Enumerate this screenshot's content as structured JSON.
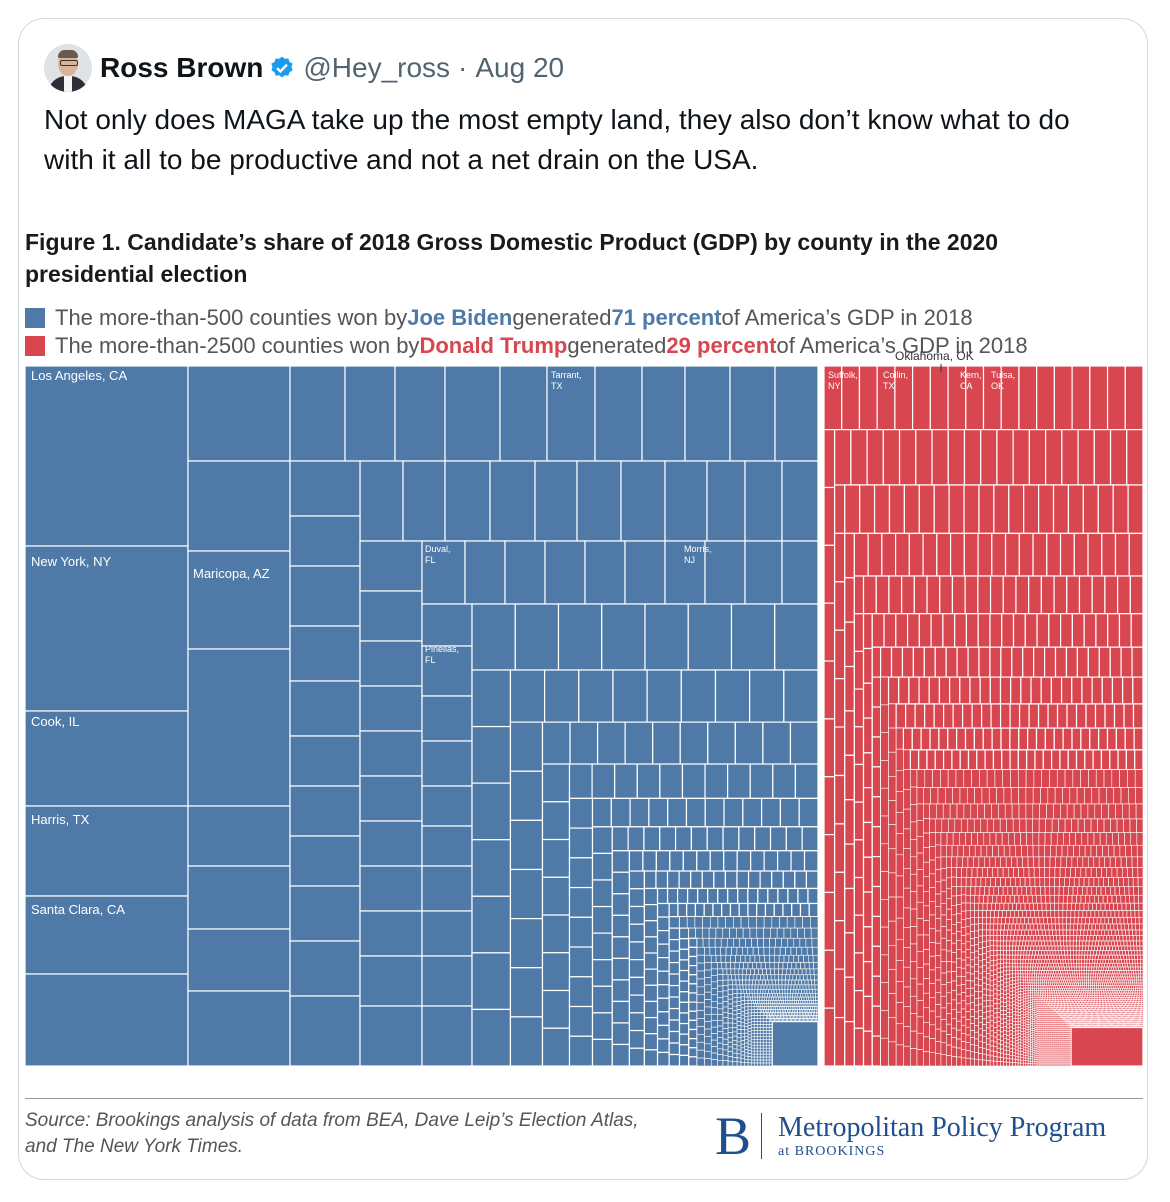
{
  "tweet": {
    "author_name": "Ross Brown",
    "handle": "@Hey_ross",
    "separator": "·",
    "date": "Aug 20",
    "text": "Not only does MAGA take up the most empty land, they also don’t know what to do with it all to be productive and not a net drain on the USA.",
    "icons": [
      "avatar",
      "verified-badge-icon"
    ],
    "colors": {
      "verified": "#1d9bf0",
      "text": "#0f1419",
      "muted": "#536471"
    }
  },
  "figure": {
    "title": "Figure 1. Candidate’s share of 2018 Gross Domestic Product (GDP) by county in the 2020 presidential election",
    "legend": [
      {
        "pre": "The more-than-500 counties won by ",
        "name": "Joe Biden",
        "mid": " generated ",
        "pct": "71 percent",
        "post": " of America’s GDP in 2018",
        "color": "#4f79a6"
      },
      {
        "pre": "The more-than-2500 counties won by ",
        "name": "Donald Trump",
        "mid": " generated ",
        "pct": "29 percent",
        "post": " of America’s GDP in 2018",
        "color": "#d8464f"
      }
    ],
    "source": "Source: Brookings analysis of data from BEA, Dave Leip’s Election Atlas, and The New York Times.",
    "source_line1": "Source: Brookings analysis of data from BEA, Dave Leip’s Election Atlas,",
    "source_line2": "and The New York Times.",
    "logo": {
      "letter": "B",
      "name": "Metropolitan Policy Program",
      "sub": "at BROOKINGS"
    }
  },
  "chart_data": {
    "type": "treemap",
    "series": [
      {
        "name": "Joe Biden",
        "share_percent": 71,
        "counties": "more-than-500",
        "color": "#4f79a6"
      },
      {
        "name": "Donald Trump",
        "share_percent": 29,
        "counties": "more-than-2500",
        "color": "#d8464f"
      }
    ],
    "labels_biden": [
      "Los Angeles, CA",
      "New York, NY",
      "Cook, IL",
      "Harris, TX",
      "Santa Clara, CA",
      "Maricopa, AZ",
      "Tarrant, TX",
      "Duval, FL",
      "Morris, NJ",
      "Pinellas, FL"
    ],
    "labels_trump": [
      "Oklahoma, OK",
      "Suffolk, NY",
      "Collin, TX",
      "Kern, CA",
      "Tulsa, OK"
    ]
  }
}
